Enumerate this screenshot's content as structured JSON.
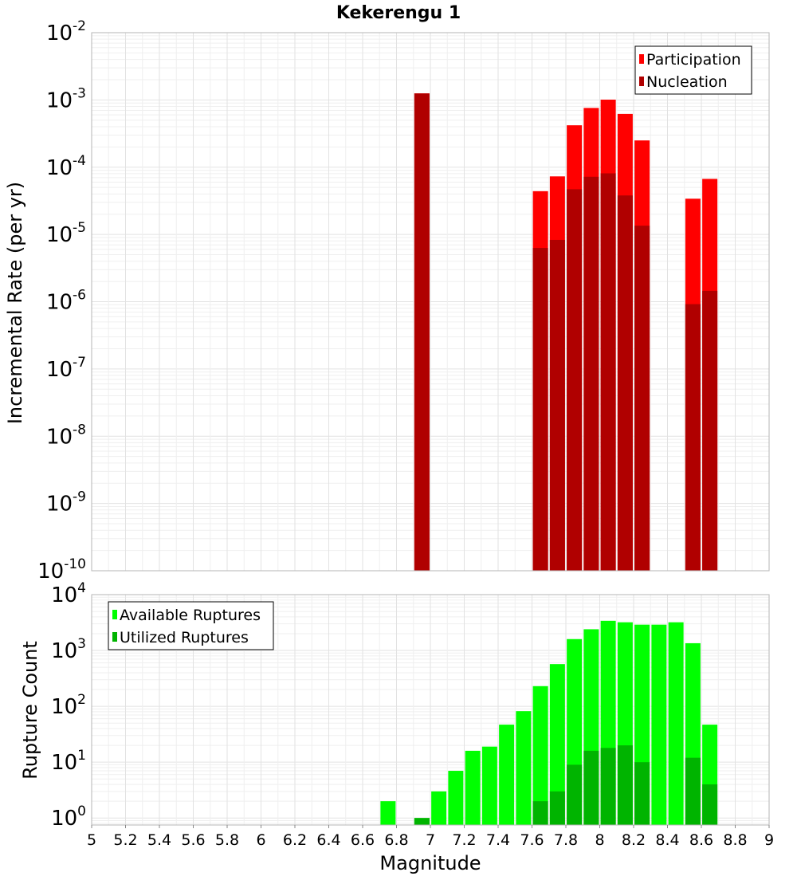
{
  "chart_data": [
    {
      "type": "bar",
      "title": "Kekerengu 1",
      "xlabel": "",
      "ylabel": "Incremental Rate (per yr)",
      "yscale": "log",
      "ylim": [
        1e-10,
        0.01
      ],
      "xlim": [
        5,
        9
      ],
      "grid": true,
      "legend_position": "top-right",
      "x": [
        6.95,
        7.65,
        7.75,
        7.85,
        7.95,
        8.05,
        8.15,
        8.25,
        8.55,
        8.65
      ],
      "series": [
        {
          "name": "Participation",
          "color": "#ff0000",
          "values": [
            0.00125,
            4.4e-05,
            7.3e-05,
            0.00042,
            0.00076,
            0.00101,
            0.00062,
            0.00025,
            3.4e-05,
            6.7e-05
          ]
        },
        {
          "name": "Nucleation",
          "color": "#b00000",
          "values": [
            0.00125,
            6.3e-06,
            8.3e-06,
            4.7e-05,
            7.2e-05,
            8.1e-05,
            3.8e-05,
            1.35e-05,
            9.2e-07,
            1.45e-06
          ]
        }
      ],
      "ytick_labels": [
        {
          "base": "10",
          "exp": "-10"
        },
        {
          "base": "10",
          "exp": "-9"
        },
        {
          "base": "10",
          "exp": "-8"
        },
        {
          "base": "10",
          "exp": "-7"
        },
        {
          "base": "10",
          "exp": "-6"
        },
        {
          "base": "10",
          "exp": "-5"
        },
        {
          "base": "10",
          "exp": "-4"
        },
        {
          "base": "10",
          "exp": "-3"
        },
        {
          "base": "10",
          "exp": "-2"
        }
      ]
    },
    {
      "type": "bar",
      "title": "",
      "xlabel": "Magnitude",
      "ylabel": "Rupture Count",
      "yscale": "log",
      "ylim": [
        0.75,
        10000
      ],
      "xlim": [
        5,
        9
      ],
      "grid": true,
      "legend_position": "top-left",
      "x": [
        6.75,
        6.95,
        7.05,
        7.15,
        7.25,
        7.35,
        7.45,
        7.55,
        7.65,
        7.75,
        7.85,
        7.95,
        8.05,
        8.15,
        8.25,
        8.35,
        8.45,
        8.55,
        8.65
      ],
      "series": [
        {
          "name": "Available Ruptures",
          "color": "#00ff00",
          "values": [
            2,
            1,
            3,
            7,
            16,
            19,
            47,
            82,
            230,
            570,
            1600,
            2400,
            3400,
            3200,
            2900,
            2900,
            3200,
            1350,
            47
          ]
        },
        {
          "name": "Utilized Ruptures",
          "color": "#00b400",
          "values": [
            0,
            1,
            0,
            0,
            0,
            0,
            0,
            0,
            2,
            3,
            9,
            16,
            18,
            20,
            10,
            0,
            0,
            12,
            4
          ]
        }
      ],
      "ytick_labels": [
        {
          "base": "10",
          "exp": "0"
        },
        {
          "base": "10",
          "exp": "1"
        },
        {
          "base": "10",
          "exp": "2"
        },
        {
          "base": "10",
          "exp": "3"
        },
        {
          "base": "10",
          "exp": "4"
        }
      ],
      "xtick_labels": [
        "5",
        "5.2",
        "5.4",
        "5.6",
        "5.8",
        "6",
        "6.2",
        "6.4",
        "6.6",
        "6.8",
        "7",
        "7.2",
        "7.4",
        "7.6",
        "7.8",
        "8",
        "8.2",
        "8.4",
        "8.6",
        "8.8",
        "9"
      ]
    }
  ]
}
